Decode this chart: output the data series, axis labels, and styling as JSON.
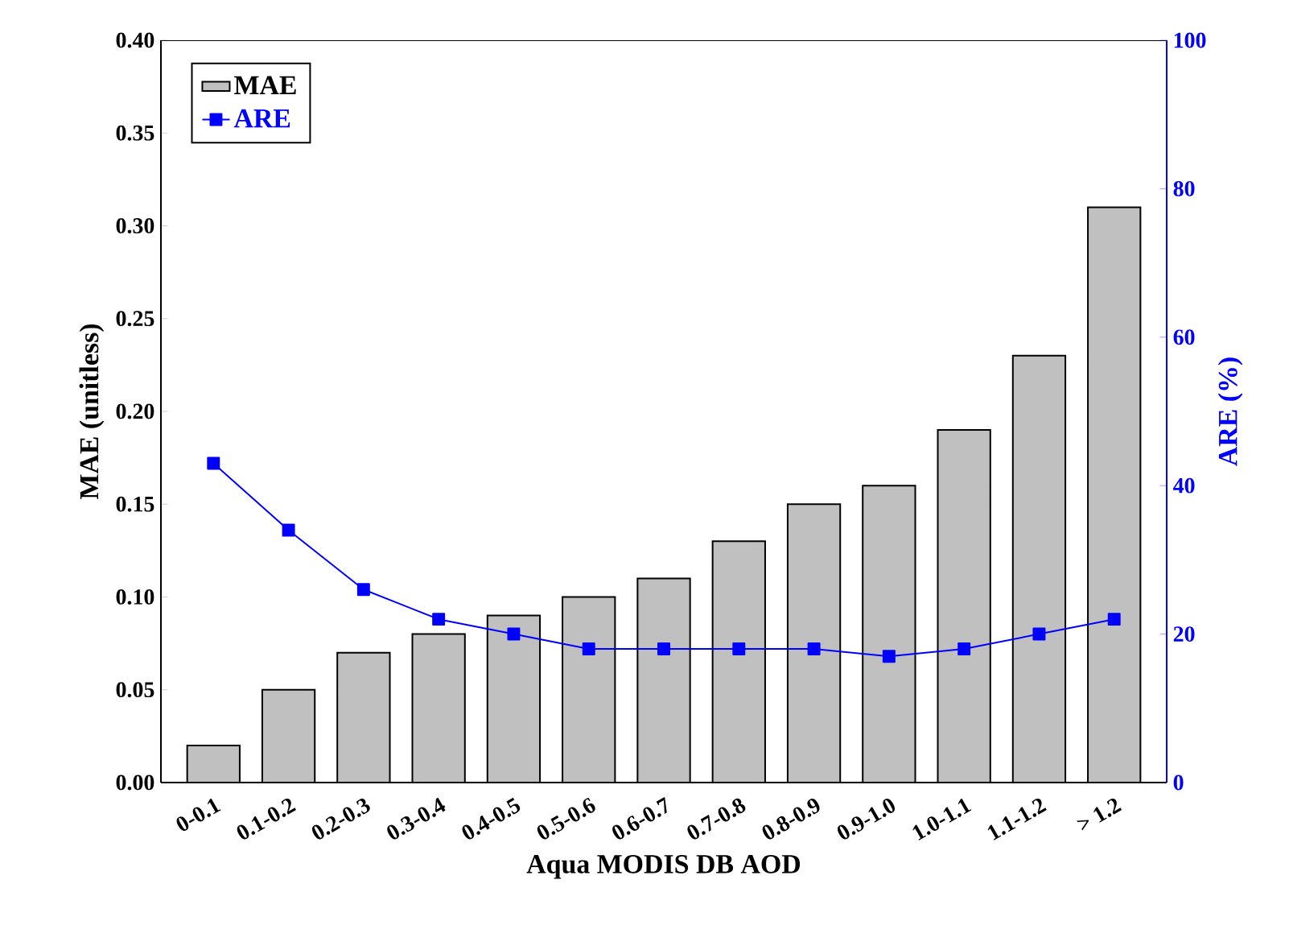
{
  "chart_data": {
    "type": "bar",
    "xlabel": "Aqua MODIS DB AOD",
    "ylabel": "MAE (unitless)",
    "y2label": "ARE (%)",
    "categories": [
      "0-0.1",
      "0.1-0.2",
      "0.2-0.3",
      "0.3-0.4",
      "0.4-0.5",
      "0.5-0.6",
      "0.6-0.7",
      "0.7-0.8",
      "0.8-0.9",
      "0.9-1.0",
      "1.0-1.1",
      "1.1-1.2",
      "> 1.2"
    ],
    "series": [
      {
        "name": "MAE",
        "color": "#c0c0c0",
        "values": [
          0.02,
          0.05,
          0.07,
          0.08,
          0.09,
          0.1,
          0.11,
          0.13,
          0.15,
          0.16,
          0.19,
          0.23,
          0.31
        ]
      },
      {
        "name": "ARE",
        "type": "line",
        "axis": "y2",
        "color": "#0000ff",
        "values": [
          43,
          34,
          26,
          22,
          20,
          18,
          18,
          18,
          18,
          17,
          18,
          20,
          22
        ]
      }
    ],
    "ylim": [
      0,
      0.4
    ],
    "yticks": [
      {
        "value": 0,
        "label": "0.00"
      },
      {
        "value": 0.05,
        "label": "0.05"
      },
      {
        "value": 0.1,
        "label": "0.10"
      },
      {
        "value": 0.15,
        "label": "0.15"
      },
      {
        "value": 0.2,
        "label": "0.20"
      },
      {
        "value": 0.25,
        "label": "0.25"
      },
      {
        "value": 0.3,
        "label": "0.30"
      },
      {
        "value": 0.35,
        "label": "0.35"
      },
      {
        "value": 0.4,
        "label": "0.40"
      }
    ],
    "y2lim": [
      0,
      100
    ],
    "y2ticks": [
      0,
      20,
      40,
      60,
      80,
      100
    ],
    "legend": "top left",
    "marker": "square",
    "grid": false
  }
}
